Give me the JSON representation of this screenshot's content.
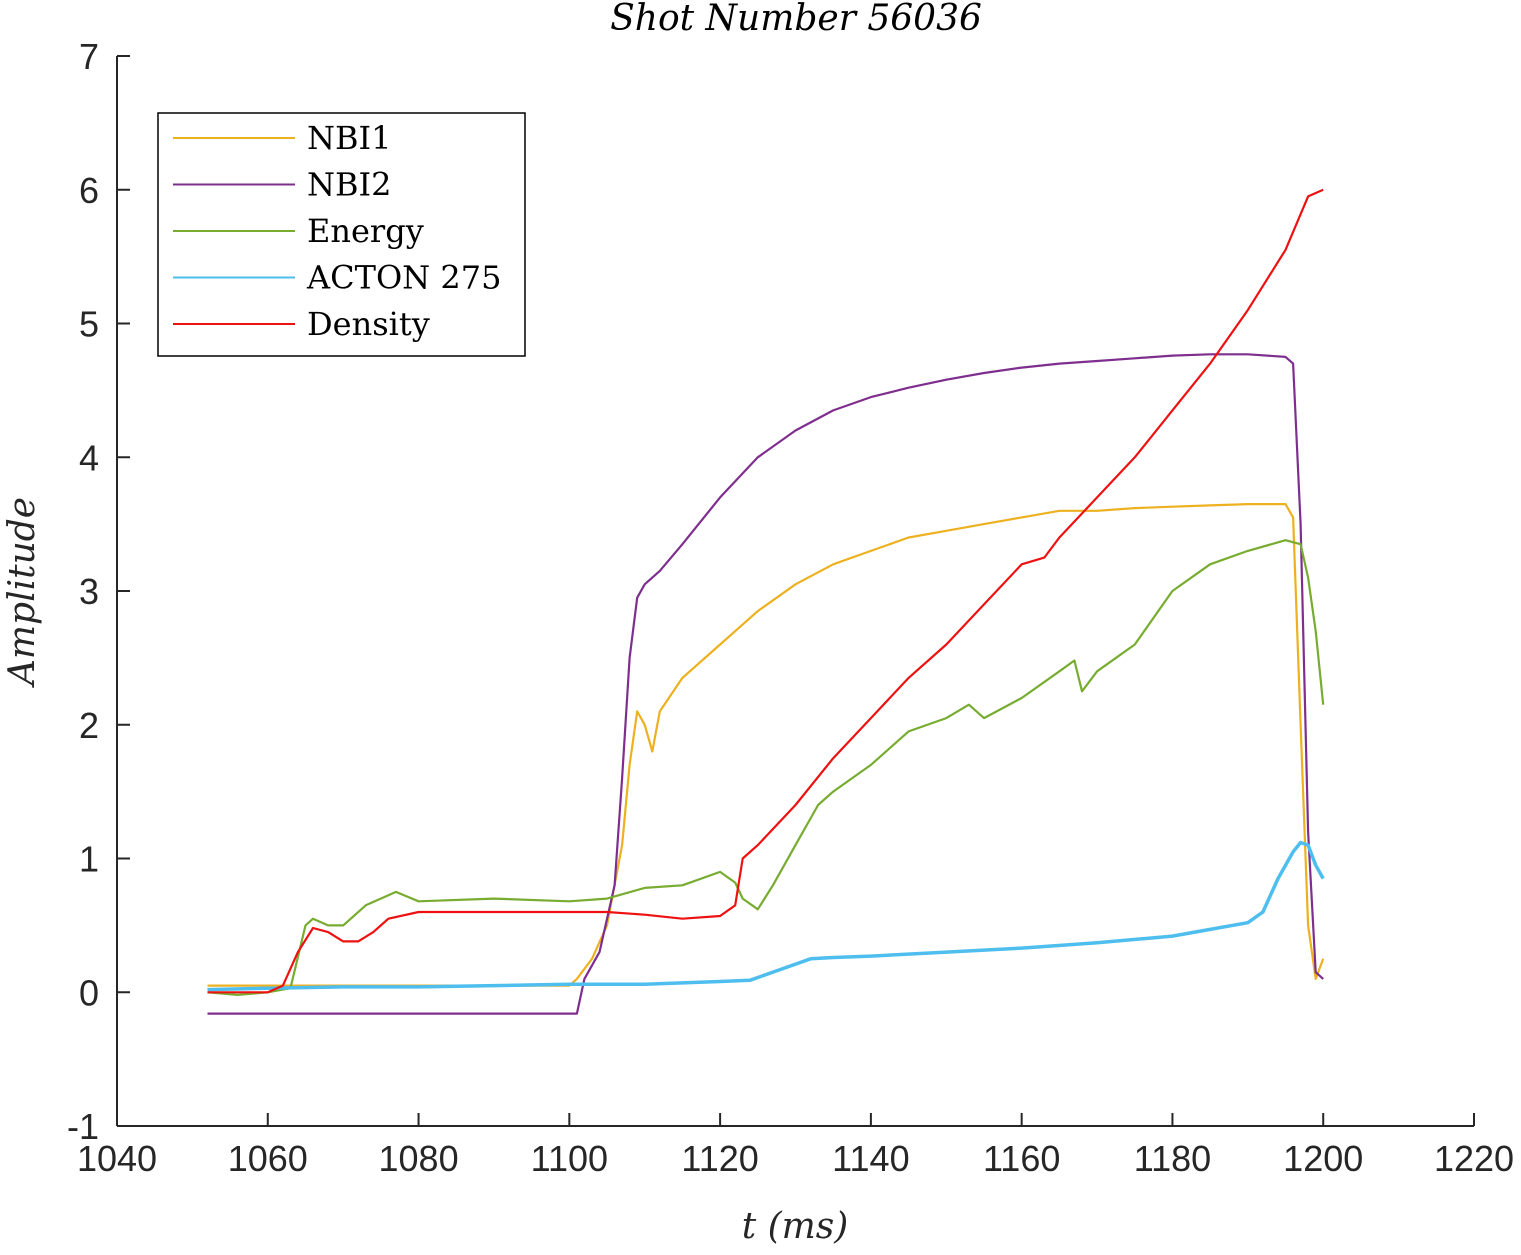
{
  "chart_data": {
    "type": "line",
    "title": "Shot Number 56036",
    "xlabel": "t (ms)",
    "ylabel": "Amplitude",
    "xlim": [
      1040,
      1220
    ],
    "ylim": [
      -1,
      7
    ],
    "xticks": [
      "1040",
      "1060",
      "1080",
      "1100",
      "1120",
      "1140",
      "1160",
      "1180",
      "1200",
      "1220"
    ],
    "yticks": [
      "-1",
      "0",
      "1",
      "2",
      "3",
      "4",
      "5",
      "6",
      "7"
    ],
    "legend_position": "top-left",
    "grid": false,
    "series": [
      {
        "name": "NBI1",
        "color": "#EDB120",
        "x": [
          1052,
          1060,
          1070,
          1080,
          1090,
          1100,
          1101,
          1103,
          1105,
          1107,
          1108,
          1109,
          1110,
          1111,
          1112,
          1115,
          1120,
          1125,
          1130,
          1135,
          1140,
          1145,
          1150,
          1155,
          1160,
          1165,
          1170,
          1175,
          1180,
          1185,
          1190,
          1195,
          1196,
          1197,
          1198,
          1199,
          1200
        ],
        "y": [
          0.05,
          0.05,
          0.05,
          0.05,
          0.05,
          0.05,
          0.1,
          0.25,
          0.5,
          1.1,
          1.7,
          2.1,
          2.0,
          1.8,
          2.1,
          2.35,
          2.6,
          2.85,
          3.05,
          3.2,
          3.3,
          3.4,
          3.45,
          3.5,
          3.55,
          3.6,
          3.6,
          3.62,
          3.63,
          3.64,
          3.65,
          3.65,
          3.55,
          2.0,
          0.5,
          0.1,
          0.25
        ]
      },
      {
        "name": "NBI2",
        "color": "#7E2F8E",
        "x": [
          1052,
          1060,
          1070,
          1080,
          1090,
          1100,
          1101,
          1102,
          1104,
          1106,
          1107,
          1108,
          1109,
          1110,
          1112,
          1115,
          1120,
          1125,
          1130,
          1135,
          1140,
          1145,
          1150,
          1155,
          1160,
          1165,
          1170,
          1175,
          1180,
          1185,
          1190,
          1195,
          1196,
          1197,
          1198,
          1199,
          1200
        ],
        "y": [
          -0.16,
          -0.16,
          -0.16,
          -0.16,
          -0.16,
          -0.16,
          -0.16,
          0.1,
          0.3,
          0.8,
          1.6,
          2.5,
          2.95,
          3.05,
          3.15,
          3.35,
          3.7,
          4.0,
          4.2,
          4.35,
          4.45,
          4.52,
          4.58,
          4.63,
          4.67,
          4.7,
          4.72,
          4.74,
          4.76,
          4.77,
          4.77,
          4.75,
          4.7,
          3.5,
          1.2,
          0.15,
          0.1
        ]
      },
      {
        "name": "Energy",
        "color": "#77AC30",
        "x": [
          1052,
          1056,
          1060,
          1063,
          1065,
          1066,
          1068,
          1070,
          1073,
          1077,
          1080,
          1090,
          1100,
          1105,
          1110,
          1115,
          1120,
          1122,
          1123,
          1125,
          1127,
          1130,
          1133,
          1135,
          1140,
          1145,
          1150,
          1153,
          1155,
          1160,
          1165,
          1167,
          1168,
          1170,
          1175,
          1180,
          1185,
          1190,
          1195,
          1197,
          1198,
          1199,
          1200
        ],
        "y": [
          0.0,
          -0.02,
          0.0,
          0.03,
          0.5,
          0.55,
          0.5,
          0.5,
          0.65,
          0.75,
          0.68,
          0.7,
          0.68,
          0.7,
          0.78,
          0.8,
          0.9,
          0.82,
          0.7,
          0.62,
          0.8,
          1.1,
          1.4,
          1.5,
          1.7,
          1.95,
          2.05,
          2.15,
          2.05,
          2.2,
          2.4,
          2.48,
          2.25,
          2.4,
          2.6,
          3.0,
          3.2,
          3.3,
          3.38,
          3.35,
          3.1,
          2.7,
          2.15
        ]
      },
      {
        "name": "ACTON 275",
        "color": "#4DBEEE",
        "x": [
          1052,
          1060,
          1070,
          1080,
          1090,
          1100,
          1110,
          1120,
          1124,
          1128,
          1132,
          1135,
          1140,
          1150,
          1160,
          1170,
          1180,
          1185,
          1190,
          1192,
          1194,
          1196,
          1197,
          1198,
          1199,
          1200
        ],
        "y": [
          0.02,
          0.03,
          0.04,
          0.04,
          0.05,
          0.06,
          0.06,
          0.08,
          0.09,
          0.17,
          0.25,
          0.26,
          0.27,
          0.3,
          0.33,
          0.37,
          0.42,
          0.47,
          0.52,
          0.6,
          0.85,
          1.05,
          1.12,
          1.1,
          0.95,
          0.85
        ]
      },
      {
        "name": "Density",
        "color": "#EE1111",
        "x": [
          1052,
          1060,
          1062,
          1064,
          1066,
          1068,
          1070,
          1072,
          1074,
          1076,
          1080,
          1090,
          1100,
          1105,
          1110,
          1115,
          1120,
          1122,
          1123,
          1125,
          1130,
          1135,
          1140,
          1145,
          1150,
          1155,
          1160,
          1163,
          1165,
          1170,
          1175,
          1180,
          1185,
          1190,
          1195,
          1198,
          1200
        ],
        "y": [
          0.0,
          0.0,
          0.05,
          0.3,
          0.48,
          0.45,
          0.38,
          0.38,
          0.45,
          0.55,
          0.6,
          0.6,
          0.6,
          0.6,
          0.58,
          0.55,
          0.57,
          0.65,
          1.0,
          1.1,
          1.4,
          1.75,
          2.05,
          2.35,
          2.6,
          2.9,
          3.2,
          3.25,
          3.4,
          3.7,
          4.0,
          4.35,
          4.7,
          5.1,
          5.55,
          5.95,
          6.0
        ]
      }
    ]
  }
}
